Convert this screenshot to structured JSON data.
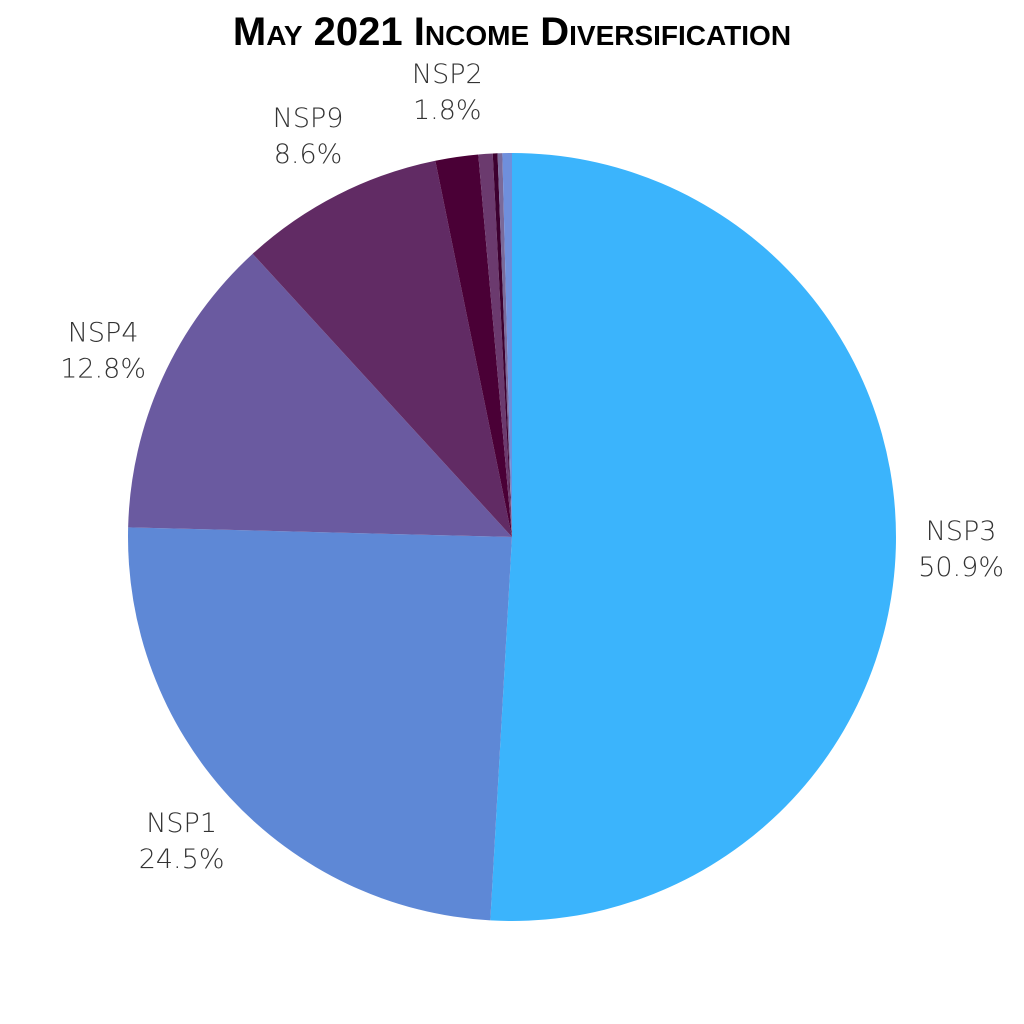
{
  "chart_data": {
    "type": "pie",
    "title": "May 2021 Income Diversification",
    "categories": [
      "NSP3",
      "NSP1",
      "NSP4",
      "NSP9",
      "NSP2",
      null,
      null,
      null,
      null
    ],
    "values": [
      50.9,
      24.5,
      12.8,
      8.6,
      1.8,
      0.6,
      0.2,
      0.2,
      0.4
    ],
    "value_labels": [
      "50.9%",
      "24.5%",
      "12.8%",
      "8.6%",
      "1.8%",
      null,
      null,
      null,
      null
    ],
    "colors": [
      "#3bb4fc",
      "#5e88d6",
      "#6a5aa0",
      "#612b64",
      "#4a0036",
      "#6b3a6e",
      "#3d0030",
      "#7a6a9a",
      "#6f8fdc"
    ]
  }
}
